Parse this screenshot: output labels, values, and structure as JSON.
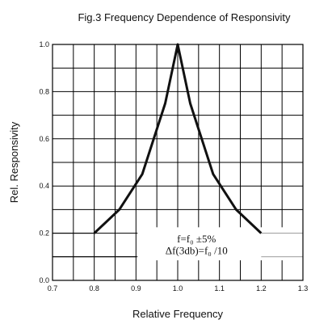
{
  "chart_data": {
    "type": "line",
    "title": "Fig.3 Frequency Dependence of Responsivity",
    "xlabel": "Relative Frequency",
    "ylabel": "Rel. Responsivity",
    "xlim": [
      0.7,
      1.3
    ],
    "ylim": [
      0.0,
      1.0
    ],
    "x_ticks": [
      "0.7",
      "0.8",
      "0.9",
      "1.0",
      "1.1",
      "1.2",
      "1.3"
    ],
    "y_ticks": [
      "0.0",
      "0.2",
      "0.4",
      "0.6",
      "0.8",
      "1.0"
    ],
    "grid": true,
    "series": [
      {
        "x": [
          0.8,
          0.86,
          0.915,
          0.97,
          1.0,
          1.03,
          1.085,
          1.14,
          1.2
        ],
        "y": [
          0.2,
          0.3,
          0.45,
          0.75,
          1.0,
          0.75,
          0.45,
          0.3,
          0.2
        ]
      }
    ],
    "annotations": [
      "f=f₀ ±5%",
      "Δf(3db)=f₀ /10"
    ]
  }
}
